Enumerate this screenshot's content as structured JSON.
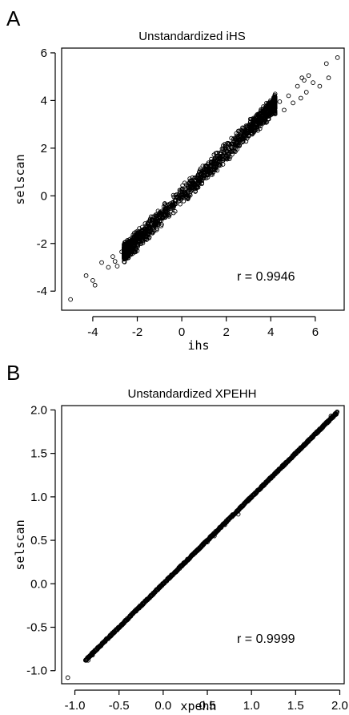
{
  "chart_data": [
    {
      "panel": "A",
      "type": "scatter",
      "title": "Unstandardized iHS",
      "xlabel": "ihs",
      "ylabel": "selscan",
      "xlim": [
        -5.4,
        7.3
      ],
      "ylim": [
        -4.8,
        6.2
      ],
      "xticks": [
        -4,
        -2,
        0,
        2,
        4,
        6
      ],
      "yticks": [
        -4,
        -2,
        0,
        2,
        4,
        6
      ],
      "xtick_labels": [
        "-4",
        "-2",
        "0",
        "2",
        "4",
        "6"
      ],
      "ytick_labels": [
        "-4",
        "-2",
        "0",
        "2",
        "4",
        "6"
      ],
      "annotation": "r = 0.9946",
      "grid": false,
      "legend": "none",
      "points": [
        [
          -5.0,
          -4.35
        ],
        [
          -4.3,
          -3.35
        ],
        [
          -4.0,
          -3.55
        ],
        [
          -3.9,
          -3.75
        ],
        [
          -3.6,
          -2.8
        ],
        [
          -3.3,
          -3.0
        ],
        [
          -3.1,
          -2.55
        ],
        [
          -3.0,
          -2.75
        ],
        [
          -2.9,
          -2.95
        ],
        [
          -2.7,
          -2.35
        ],
        [
          -2.5,
          -2.1
        ],
        [
          -2.4,
          -2.6
        ],
        [
          -2.2,
          -1.9
        ],
        [
          -2.0,
          -2.3
        ],
        [
          -1.8,
          -1.5
        ],
        [
          6.5,
          5.55
        ],
        [
          7.0,
          5.8
        ],
        [
          6.6,
          4.95
        ],
        [
          6.2,
          4.6
        ],
        [
          5.9,
          4.75
        ],
        [
          5.6,
          4.35
        ],
        [
          5.5,
          4.85
        ],
        [
          5.35,
          4.1
        ],
        [
          5.2,
          4.6
        ],
        [
          5.0,
          3.9
        ],
        [
          4.8,
          4.2
        ],
        [
          4.6,
          3.6
        ],
        [
          4.4,
          3.95
        ],
        [
          5.4,
          4.95
        ],
        [
          5.7,
          5.05
        ]
      ],
      "cloud_fit": {
        "slope": 0.92,
        "intercept": 0.0
      }
    },
    {
      "panel": "B",
      "type": "scatter",
      "title": "Unstandardized XPEHH",
      "xlabel": "xpehh",
      "ylabel": "selscan",
      "xlim": [
        -1.15,
        2.05
      ],
      "ylim": [
        -1.15,
        2.05
      ],
      "xticks": [
        -1.0,
        -0.5,
        0.0,
        0.5,
        1.0,
        1.5,
        2.0
      ],
      "yticks": [
        -1.0,
        -0.5,
        0.0,
        0.5,
        1.0,
        1.5,
        2.0
      ],
      "xtick_labels": [
        "-1.0",
        "-0.5",
        "0.0",
        "0.5",
        "1.0",
        "1.5",
        "2.0"
      ],
      "ytick_labels": [
        "-1.0",
        "-0.5",
        "0.0",
        "0.5",
        "1.0",
        "1.5",
        "2.0"
      ],
      "annotation": "r = 0.9999",
      "grid": false,
      "legend": "none",
      "points": [
        [
          -1.08,
          -1.08
        ],
        [
          -0.85,
          -0.88
        ],
        [
          1.95,
          1.96
        ],
        [
          1.9,
          1.93
        ],
        [
          1.85,
          1.86
        ],
        [
          0.85,
          0.8
        ],
        [
          0.58,
          0.55
        ],
        [
          0.5,
          0.48
        ],
        [
          0.7,
          0.68
        ],
        [
          -0.8,
          -0.82
        ]
      ],
      "line_fit": {
        "slope": 1.0,
        "intercept": 0.0,
        "from": -0.88,
        "to": 1.97
      }
    }
  ]
}
